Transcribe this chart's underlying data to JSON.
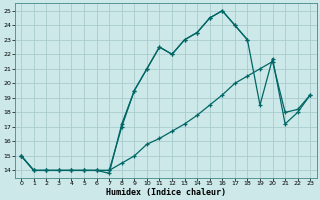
{
  "title": "",
  "xlabel": "Humidex (Indice chaleur)",
  "background_color": "#cce8e8",
  "line_color": "#006666",
  "grid_color": "#aacccc",
  "xlim": [
    -0.5,
    23.5
  ],
  "ylim": [
    13.5,
    25.5
  ],
  "xticks": [
    0,
    1,
    2,
    3,
    4,
    5,
    6,
    7,
    8,
    9,
    10,
    11,
    12,
    13,
    14,
    15,
    16,
    17,
    18,
    19,
    20,
    21,
    22,
    23
  ],
  "yticks": [
    14,
    15,
    16,
    17,
    18,
    19,
    20,
    21,
    22,
    23,
    24,
    25
  ],
  "line1_x": [
    0,
    1,
    2,
    3,
    4,
    5,
    6,
    7,
    8,
    9,
    10,
    11,
    12,
    13,
    14,
    15,
    16,
    17,
    18
  ],
  "line1_y": [
    15,
    14,
    14,
    14,
    14,
    14,
    14,
    14,
    17,
    19.5,
    21,
    22.5,
    22,
    23,
    23.5,
    24.5,
    25,
    24,
    23
  ],
  "line2_x": [
    0,
    1,
    2,
    3,
    4,
    5,
    6,
    7,
    8,
    9,
    10,
    11,
    12,
    13,
    14,
    15,
    16,
    17,
    18,
    19,
    20,
    21,
    22,
    23
  ],
  "line2_y": [
    15,
    14,
    14,
    14,
    14,
    14,
    14,
    14,
    14.5,
    15,
    15.8,
    16.2,
    16.7,
    17.2,
    17.8,
    18.5,
    19.2,
    20,
    20.5,
    21,
    21.5,
    18,
    18.2,
    19.2
  ],
  "line3_x": [
    0,
    1,
    2,
    3,
    4,
    5,
    6,
    7,
    8,
    9,
    10,
    11,
    12,
    13,
    14,
    15,
    16,
    17,
    18,
    19,
    20,
    21,
    22,
    23
  ],
  "line3_y": [
    15,
    14,
    14,
    14,
    14,
    14,
    14,
    13.8,
    17.2,
    19.5,
    21,
    22.5,
    22,
    23,
    23.5,
    24.5,
    25,
    24,
    23,
    18.5,
    21.7,
    17.2,
    18,
    19.2
  ]
}
